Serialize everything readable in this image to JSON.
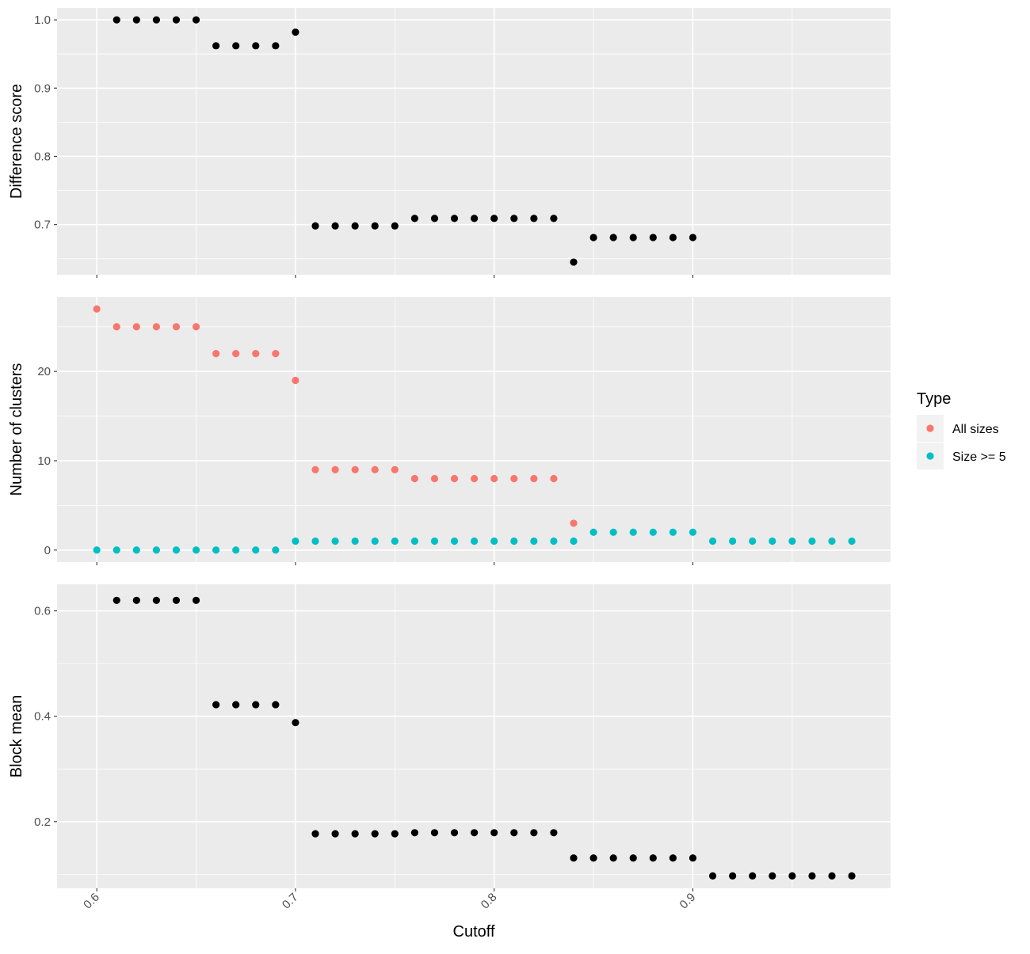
{
  "chart_data": [
    {
      "type": "scatter",
      "panel": "top",
      "ylabel": "Difference score",
      "xlim": [
        0.58,
        0.9995
      ],
      "ylim": [
        0.6265,
        1.0175
      ],
      "yticks": [
        "0.7",
        "0.8",
        "0.9",
        "1.0"
      ],
      "ytick_values": [
        0.7,
        0.8,
        0.9,
        1.0
      ],
      "y_minor_breaks": [
        0.65,
        0.75,
        0.85,
        0.95
      ],
      "x_show_tick_labels": false,
      "grid": true,
      "series": [
        {
          "color": "#000000",
          "x": [
            0.61,
            0.62,
            0.63,
            0.64,
            0.65,
            0.66,
            0.67,
            0.68,
            0.69,
            0.7,
            0.71,
            0.72,
            0.73,
            0.74,
            0.75,
            0.76,
            0.77,
            0.78,
            0.79,
            0.8,
            0.81,
            0.82,
            0.83,
            0.84,
            0.85,
            0.86,
            0.87,
            0.88,
            0.89,
            0.9
          ],
          "y": [
            1.0,
            1.0,
            1.0,
            1.0,
            1.0,
            0.962,
            0.962,
            0.962,
            0.962,
            0.982,
            0.698,
            0.698,
            0.698,
            0.698,
            0.698,
            0.709,
            0.709,
            0.709,
            0.709,
            0.709,
            0.709,
            0.709,
            0.709,
            0.645,
            0.681,
            0.681,
            0.681,
            0.681,
            0.681,
            0.681
          ]
        }
      ]
    },
    {
      "type": "scatter",
      "panel": "middle",
      "ylabel": "Number of clusters",
      "xlim": [
        0.58,
        0.9995
      ],
      "ylim": [
        -1.35,
        28.35
      ],
      "yticks": [
        "0",
        "10",
        "20"
      ],
      "ytick_values": [
        0,
        10,
        20
      ],
      "y_minor_breaks": [
        5,
        15,
        25
      ],
      "x_show_tick_labels": false,
      "grid": true,
      "series": [
        {
          "name": "All sizes",
          "color": "#F8766D",
          "x": [
            0.6,
            0.61,
            0.62,
            0.63,
            0.64,
            0.65,
            0.66,
            0.67,
            0.68,
            0.69,
            0.7,
            0.71,
            0.72,
            0.73,
            0.74,
            0.75,
            0.76,
            0.77,
            0.78,
            0.79,
            0.8,
            0.81,
            0.82,
            0.83,
            0.84
          ],
          "y": [
            27,
            25,
            25,
            25,
            25,
            25,
            22,
            22,
            22,
            22,
            19,
            9,
            9,
            9,
            9,
            9,
            8,
            8,
            8,
            8,
            8,
            8,
            8,
            8,
            3
          ]
        },
        {
          "name": "Size >= 5",
          "color": "#00BFC4",
          "x": [
            0.6,
            0.61,
            0.62,
            0.63,
            0.64,
            0.65,
            0.66,
            0.67,
            0.68,
            0.69,
            0.7,
            0.71,
            0.72,
            0.73,
            0.74,
            0.75,
            0.76,
            0.77,
            0.78,
            0.79,
            0.8,
            0.81,
            0.82,
            0.83,
            0.84,
            0.85,
            0.86,
            0.87,
            0.88,
            0.89,
            0.9,
            0.91,
            0.92,
            0.93,
            0.94,
            0.95,
            0.96,
            0.97,
            0.98
          ],
          "y": [
            0,
            0,
            0,
            0,
            0,
            0,
            0,
            0,
            0,
            0,
            1,
            1,
            1,
            1,
            1,
            1,
            1,
            1,
            1,
            1,
            1,
            1,
            1,
            1,
            1,
            2,
            2,
            2,
            2,
            2,
            2,
            1,
            1,
            1,
            1,
            1,
            1,
            1,
            1
          ]
        }
      ]
    },
    {
      "type": "scatter",
      "panel": "bottom",
      "ylabel": "Block mean",
      "xlabel": "Cutoff",
      "xlim": [
        0.58,
        0.9995
      ],
      "ylim": [
        0.0735,
        0.6505
      ],
      "yticks": [
        "0.2",
        "0.4",
        "0.6"
      ],
      "ytick_values": [
        0.2,
        0.4,
        0.6
      ],
      "y_minor_breaks": [
        0.1,
        0.3,
        0.5
      ],
      "xticks": [
        "0.6",
        "0.7",
        "0.8",
        "0.9"
      ],
      "xtick_values": [
        0.6,
        0.7,
        0.8,
        0.9
      ],
      "x_minor_breaks": [
        0.65,
        0.75,
        0.85,
        0.95
      ],
      "x_show_tick_labels": true,
      "grid": true,
      "series": [
        {
          "color": "#000000",
          "x": [
            0.61,
            0.62,
            0.63,
            0.64,
            0.65,
            0.66,
            0.67,
            0.68,
            0.69,
            0.7,
            0.71,
            0.72,
            0.73,
            0.74,
            0.75,
            0.76,
            0.77,
            0.78,
            0.79,
            0.8,
            0.81,
            0.82,
            0.83,
            0.84,
            0.85,
            0.86,
            0.87,
            0.88,
            0.89,
            0.9,
            0.91,
            0.92,
            0.93,
            0.94,
            0.95,
            0.96,
            0.97,
            0.98
          ],
          "y": [
            0.62,
            0.62,
            0.62,
            0.62,
            0.62,
            0.422,
            0.422,
            0.422,
            0.422,
            0.388,
            0.177,
            0.177,
            0.177,
            0.177,
            0.177,
            0.179,
            0.179,
            0.179,
            0.179,
            0.179,
            0.179,
            0.179,
            0.179,
            0.131,
            0.131,
            0.131,
            0.131,
            0.131,
            0.131,
            0.131,
            0.097,
            0.097,
            0.097,
            0.097,
            0.097,
            0.097,
            0.097,
            0.097
          ]
        }
      ]
    }
  ],
  "legend": {
    "title": "Type",
    "position": "right",
    "items": [
      {
        "label": "All sizes",
        "color": "#F8766D"
      },
      {
        "label": "Size >= 5",
        "color": "#00BFC4"
      }
    ]
  }
}
